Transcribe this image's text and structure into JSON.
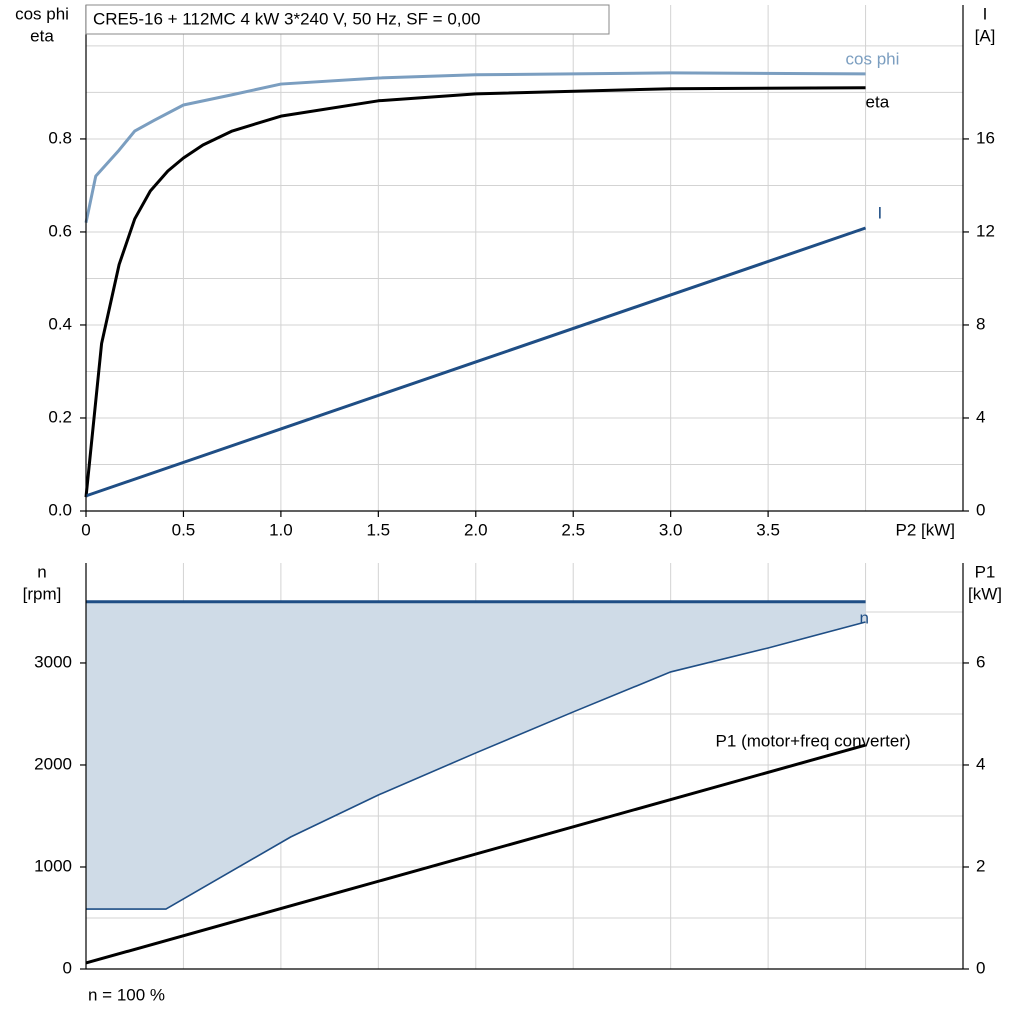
{
  "chart_data": [
    {
      "type": "line",
      "title": "CRE5-16 + 112MC   4 kW   3*240 V, 50 Hz, SF = 0,00",
      "ylabel": [
        "cos phi",
        "eta"
      ],
      "y2label": [
        "I",
        "[A]"
      ],
      "xlabel": "P2 [kW]",
      "xlim": [
        0,
        4.5
      ],
      "xticks": [
        0,
        0.5,
        {
          "value": 1,
          "label": "1.0"
        },
        1.5,
        {
          "value": 2,
          "label": "2.0"
        },
        2.5,
        {
          "value": 3,
          "label": "3.0"
        },
        3.5
      ],
      "xminor": [
        4,
        4.5
      ],
      "ylim": [
        0,
        1.088
      ],
      "yticks": [
        {
          "value": 0,
          "label": "0.0"
        },
        0.2,
        0.4,
        0.6,
        0.8
      ],
      "yminor": [
        0.1,
        0.3,
        0.5,
        0.7,
        0.9,
        1.0
      ],
      "y2lim": [
        0,
        21.76
      ],
      "y2ticks": [
        0,
        4,
        8,
        12,
        16
      ],
      "grid": true,
      "series": [
        {
          "name": "cos phi",
          "color": "#7b9ec0",
          "x": [
            0,
            0.05,
            0.17,
            0.25,
            0.35,
            0.5,
            0.75,
            1.0,
            1.5,
            2.0,
            3.0,
            4.0
          ],
          "values": [
            0.62,
            0.72,
            0.776,
            0.817,
            0.84,
            0.873,
            0.895,
            0.918,
            0.931,
            0.938,
            0.942,
            0.94
          ]
        },
        {
          "name": "eta",
          "color": "#000000",
          "x": [
            0,
            0.08,
            0.17,
            0.25,
            0.33,
            0.42,
            0.5,
            0.6,
            0.75,
            1.0,
            1.5,
            2.0,
            3.0,
            4.0
          ],
          "values": [
            0.03,
            0.36,
            0.53,
            0.628,
            0.688,
            0.731,
            0.759,
            0.787,
            0.817,
            0.849,
            0.882,
            0.897,
            0.908,
            0.91
          ]
        },
        {
          "name": "I",
          "color": "#1f4e85",
          "axis": "y2",
          "x": [
            0,
            1,
            2,
            3,
            4
          ],
          "values": [
            0.65,
            3.53,
            6.41,
            9.29,
            12.17
          ]
        }
      ]
    },
    {
      "type": "line",
      "ylabel": [
        "n",
        "[rpm]"
      ],
      "y2label": [
        "P1",
        "[kW]"
      ],
      "note": "n = 100 %",
      "xlim": [
        0,
        4.5
      ],
      "xminor": [
        0.5,
        1,
        1.5,
        2,
        2.5,
        3,
        3.5,
        4,
        4.5
      ],
      "ylim": [
        0,
        3980
      ],
      "yticks": [
        0,
        1000,
        2000,
        3000
      ],
      "yminor": [
        500,
        1500,
        2500,
        3500
      ],
      "y2lim": [
        0,
        7.96
      ],
      "y2ticks": [
        0,
        2,
        4,
        6
      ],
      "grid": true,
      "series": [
        {
          "name": "n",
          "color": "#1f4e85",
          "fill": "#cfdbe7",
          "x": [
            0,
            4
          ],
          "values": [
            3600,
            3600
          ],
          "range_min": {
            "x": [
              0,
              0.41,
              1.05,
              1.5,
              2.0,
              2.5,
              3.0,
              3.5,
              4.0
            ],
            "values": [
              588,
              588,
              1294,
              1706,
              2118,
              2520,
              2912,
              3147,
              3402
            ]
          }
        },
        {
          "name": "P1 (motor+freq converter)",
          "color": "#000000",
          "axis": "y2",
          "x": [
            0,
            4
          ],
          "values": [
            0.118,
            4.39
          ]
        }
      ]
    }
  ]
}
